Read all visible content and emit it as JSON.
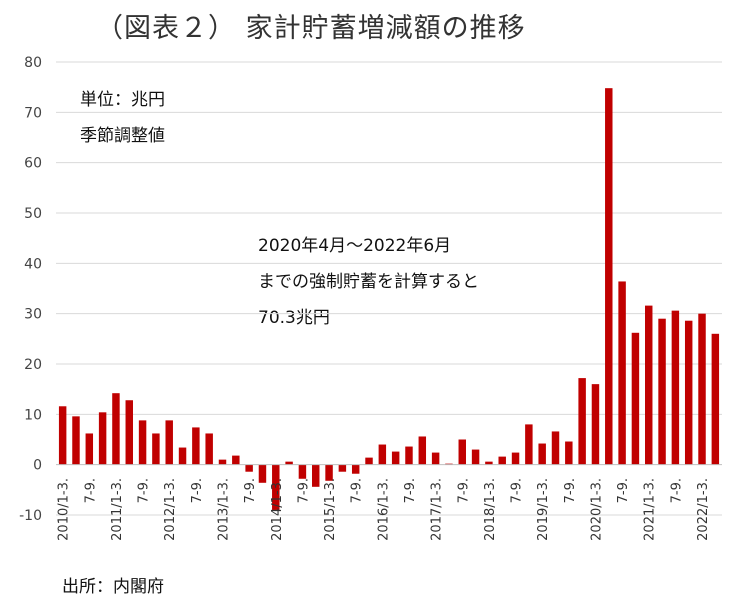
{
  "chart_data": {
    "type": "bar",
    "title": "（図表２） 家計貯蓄増減額の推移",
    "unit_note": "単位：兆円",
    "adjust_note": "季節調整値",
    "annotation": [
      "2020年4月～2022年6月",
      "までの強制貯蓄を計算すると",
      "70.3兆円"
    ],
    "source": "出所：内閣府",
    "ylim": [
      -10,
      80
    ],
    "yticks": [
      80,
      70,
      60,
      50,
      40,
      30,
      20,
      10,
      0,
      -10
    ],
    "grid": true,
    "legend": "none",
    "color": "#c00000",
    "categories": [
      "2010/1-3.",
      "",
      "7-9.",
      "",
      "2011/1-3.",
      "",
      "7-9.",
      "",
      "2012/1-3.",
      "",
      "7-9.",
      "",
      "2013/1-3.",
      "",
      "7-9.",
      "",
      "2014/1-3.",
      "",
      "7-9.",
      "",
      "2015/1-3.",
      "",
      "7-9.",
      "",
      "2016/1-3.",
      "",
      "7-9.",
      "",
      "2017/1-3.",
      "",
      "7-9.",
      "",
      "2018/1-3.",
      "",
      "7-9.",
      "",
      "2019/1-3.",
      "",
      "7-9.",
      "",
      "2020/1-3.",
      "",
      "7-9.",
      "",
      "2021/1-3.",
      "",
      "7-9.",
      "",
      "2022/1-3.",
      ""
    ],
    "values": [
      11.6,
      9.6,
      6.2,
      10.4,
      14.2,
      12.8,
      8.8,
      6.2,
      8.8,
      3.4,
      7.4,
      6.2,
      1.0,
      1.8,
      -1.4,
      -3.6,
      -9.0,
      0.6,
      -2.8,
      -4.4,
      -3.2,
      -1.4,
      -1.8,
      1.4,
      4.0,
      2.6,
      3.6,
      5.6,
      2.4,
      0.2,
      5.0,
      3.0,
      0.6,
      1.6,
      2.4,
      8.0,
      4.2,
      6.6,
      4.6,
      17.2,
      16.0,
      74.8,
      36.4,
      26.2,
      31.6,
      29.0,
      30.6,
      28.6,
      30.0,
      26.0
    ]
  }
}
